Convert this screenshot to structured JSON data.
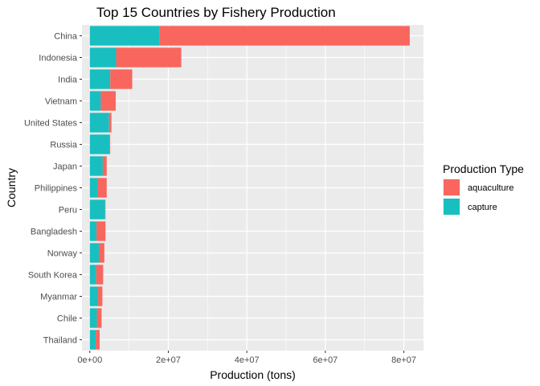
{
  "chart_data": {
    "type": "bar",
    "orientation": "horizontal",
    "stacked": true,
    "title": "Top 15 Countries by Fishery Production",
    "xlabel": "Production (tons)",
    "ylabel": "Country",
    "xlim": [
      -2000000,
      85000000
    ],
    "x_ticks": [
      0,
      20000000,
      40000000,
      60000000,
      80000000
    ],
    "x_tick_labels": [
      "0e+00",
      "2e+07",
      "4e+07",
      "6e+07",
      "8e+07"
    ],
    "categories": [
      "China",
      "Indonesia",
      "India",
      "Vietnam",
      "United States",
      "Russia",
      "Japan",
      "Philippines",
      "Peru",
      "Bangladesh",
      "Norway",
      "South Korea",
      "Myanmar",
      "Chile",
      "Thailand"
    ],
    "series": [
      {
        "name": "capture",
        "color": "#19BEC0",
        "values": [
          17800000,
          6700000,
          5200000,
          2800000,
          4900000,
          5000000,
          3300000,
          2000000,
          3900000,
          1700000,
          2300000,
          1600000,
          2100000,
          1800000,
          1500000
        ]
      },
      {
        "name": "aquaculture",
        "color": "#F8665E",
        "values": [
          63700000,
          16600000,
          5600000,
          3800000,
          600000,
          200000,
          1000000,
          2300000,
          100000,
          2300000,
          1400000,
          1800000,
          1100000,
          1200000,
          1000000
        ]
      }
    ],
    "grid": true,
    "panel_background": "#EBEBEB",
    "grid_color": "#FFFFFF",
    "legend": {
      "title": "Production Type",
      "placement": "right",
      "entries": [
        {
          "label": "aquaculture",
          "color": "#F8665E"
        },
        {
          "label": "capture",
          "color": "#19BEC0"
        }
      ]
    }
  }
}
